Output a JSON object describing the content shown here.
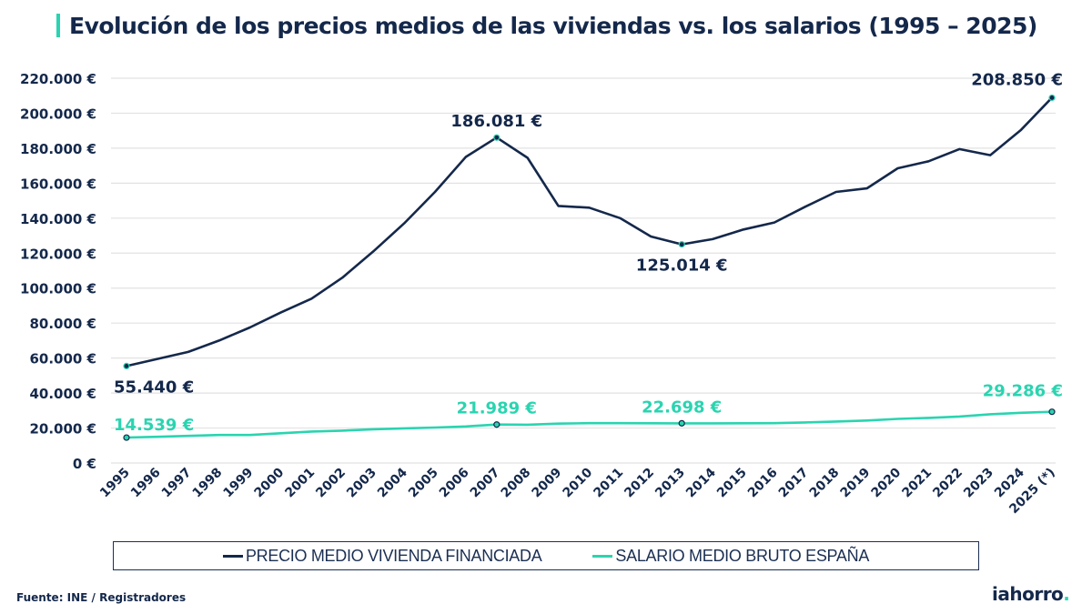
{
  "header": {
    "title": "Evolución de los precios medios de las viviendas vs. los salarios (1995 – 2025)"
  },
  "colors": {
    "accent": "#2ad4b0",
    "navy": "#14284b",
    "grid": "#e2e2e2"
  },
  "chart_data": {
    "type": "line",
    "title": "Evolución de los precios medios de las viviendas vs. los salarios (1995 – 2025)",
    "xlabel": "",
    "ylabel": "",
    "ylim": [
      0,
      220000
    ],
    "yticks": [
      0,
      20000,
      40000,
      60000,
      80000,
      100000,
      120000,
      140000,
      160000,
      180000,
      200000,
      220000
    ],
    "ytick_labels": [
      "0 €",
      "20.000 €",
      "40.000 €",
      "60.000 €",
      "80.000 €",
      "100.000 €",
      "120.000 €",
      "140.000 €",
      "160.000 €",
      "180.000 €",
      "200.000 €",
      "220.000 €"
    ],
    "grid": true,
    "legend_position": "bottom",
    "categories": [
      "1995",
      "1996",
      "1997",
      "1998",
      "1999",
      "2000",
      "2001",
      "2002",
      "2003",
      "2004",
      "2005",
      "2006",
      "2007",
      "2008",
      "2009",
      "2010",
      "2011",
      "2012",
      "2013",
      "2014",
      "2015",
      "2016",
      "2017",
      "2018",
      "2019",
      "2020",
      "2021",
      "2022",
      "2023",
      "2024",
      "2025 (*)"
    ],
    "series": [
      {
        "name": "PRECIO MEDIO VIVIENDA FINANCIADA",
        "color": "#14284b",
        "values": [
          55440,
          59500,
          63500,
          70000,
          77500,
          86000,
          94000,
          106000,
          121000,
          137000,
          155000,
          175000,
          186081,
          174500,
          147000,
          146000,
          140000,
          129500,
          125014,
          128000,
          133500,
          137500,
          146500,
          155000,
          157000,
          168500,
          172500,
          179500,
          176000,
          190500,
          208850
        ],
        "annotations": [
          {
            "index": 0,
            "label": "55.440 €",
            "position": "below"
          },
          {
            "index": 12,
            "label": "186.081 €",
            "position": "above"
          },
          {
            "index": 18,
            "label": "125.014 €",
            "position": "below"
          },
          {
            "index": 30,
            "label": "208.850 €",
            "position": "above"
          }
        ]
      },
      {
        "name": "SALARIO MEDIO BRUTO ESPAÑA",
        "color": "#2ad4b0",
        "values": [
          14539,
          15000,
          15500,
          16000,
          16000,
          17000,
          18000,
          18500,
          19300,
          19800,
          20300,
          20900,
          21989,
          21900,
          22500,
          22800,
          22800,
          22750,
          22698,
          22700,
          22750,
          22800,
          23200,
          23700,
          24300,
          25200,
          25800,
          26600,
          27900,
          28700,
          29286
        ],
        "annotations": [
          {
            "index": 0,
            "label": "14.539 €",
            "position": "above"
          },
          {
            "index": 12,
            "label": "21.989 €",
            "position": "above"
          },
          {
            "index": 18,
            "label": "22.698 €",
            "position": "above"
          },
          {
            "index": 30,
            "label": "29.286 €",
            "position": "above"
          }
        ]
      }
    ]
  },
  "legend": {
    "items": [
      {
        "label": "PRECIO MEDIO VIVIENDA FINANCIADA",
        "color": "#14284b"
      },
      {
        "label": "SALARIO MEDIO BRUTO ESPAÑA",
        "color": "#2ad4b0"
      }
    ]
  },
  "footer": {
    "source": "Fuente: INE / Registradores",
    "logo_text": "iahorro",
    "logo_dot": "."
  }
}
